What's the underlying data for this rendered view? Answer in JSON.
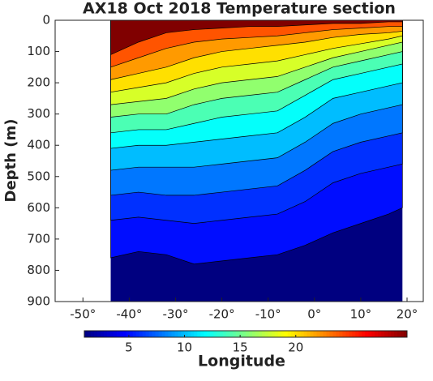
{
  "chart_data": {
    "type": "contour",
    "title": "AX18 Oct 2018 Temperature section",
    "ylabel": "Depth (m)",
    "xlabel": "Longitude",
    "x": [
      -44,
      -38,
      -32,
      -26,
      -20,
      -14,
      -8,
      -2,
      4,
      10,
      16,
      19
    ],
    "contours": [
      {
        "level": 4,
        "depths": [
          760,
          740,
          750,
          780,
          770,
          760,
          750,
          720,
          680,
          650,
          620,
          600
        ]
      },
      {
        "level": 5,
        "depths": [
          640,
          630,
          640,
          650,
          640,
          630,
          620,
          580,
          520,
          490,
          470,
          460
        ]
      },
      {
        "level": 6,
        "depths": [
          560,
          550,
          560,
          560,
          550,
          540,
          530,
          480,
          420,
          390,
          370,
          360
        ]
      },
      {
        "level": 8,
        "depths": [
          480,
          470,
          470,
          470,
          460,
          450,
          440,
          390,
          330,
          300,
          280,
          270
        ]
      },
      {
        "level": 10,
        "depths": [
          410,
          400,
          400,
          390,
          380,
          370,
          360,
          310,
          250,
          230,
          210,
          200
        ]
      },
      {
        "level": 12,
        "depths": [
          360,
          350,
          350,
          330,
          310,
          300,
          290,
          240,
          190,
          170,
          150,
          140
        ]
      },
      {
        "level": 14,
        "depths": [
          310,
          300,
          300,
          270,
          250,
          240,
          230,
          190,
          150,
          130,
          110,
          100
        ]
      },
      {
        "level": 16,
        "depths": [
          270,
          260,
          250,
          220,
          200,
          190,
          180,
          150,
          120,
          100,
          80,
          70
        ]
      },
      {
        "level": 18,
        "depths": [
          230,
          215,
          200,
          170,
          150,
          140,
          130,
          110,
          90,
          75,
          60,
          50
        ]
      },
      {
        "level": 20,
        "depths": [
          190,
          170,
          150,
          120,
          100,
          90,
          80,
          70,
          55,
          45,
          40,
          35
        ]
      },
      {
        "level": 22,
        "depths": [
          150,
          120,
          90,
          70,
          60,
          55,
          50,
          40,
          30,
          25,
          20,
          20
        ]
      },
      {
        "level": 24,
        "depths": [
          110,
          70,
          40,
          30,
          25,
          20,
          20,
          15,
          10,
          10,
          5,
          5
        ]
      }
    ],
    "colormap": "jet",
    "line_color": "#000000",
    "clim": [
      1,
      30
    ],
    "cticks": [
      5,
      10,
      15,
      20
    ],
    "xlim": [
      -56,
      23.5
    ],
    "xticks": [
      {
        "value": -50,
        "label": "-50°"
      },
      {
        "value": -40,
        "label": "-40°"
      },
      {
        "value": -30,
        "label": "-30°"
      },
      {
        "value": -20,
        "label": "-20°"
      },
      {
        "value": -10,
        "label": "-10°"
      },
      {
        "value": 0,
        "label": "0°"
      },
      {
        "value": 10,
        "label": "10°"
      },
      {
        "value": 20,
        "label": "20°"
      }
    ],
    "ylim": [
      0,
      900
    ],
    "yreverse": true,
    "yticks": [
      0,
      100,
      200,
      300,
      400,
      500,
      600,
      700,
      800,
      900
    ]
  }
}
